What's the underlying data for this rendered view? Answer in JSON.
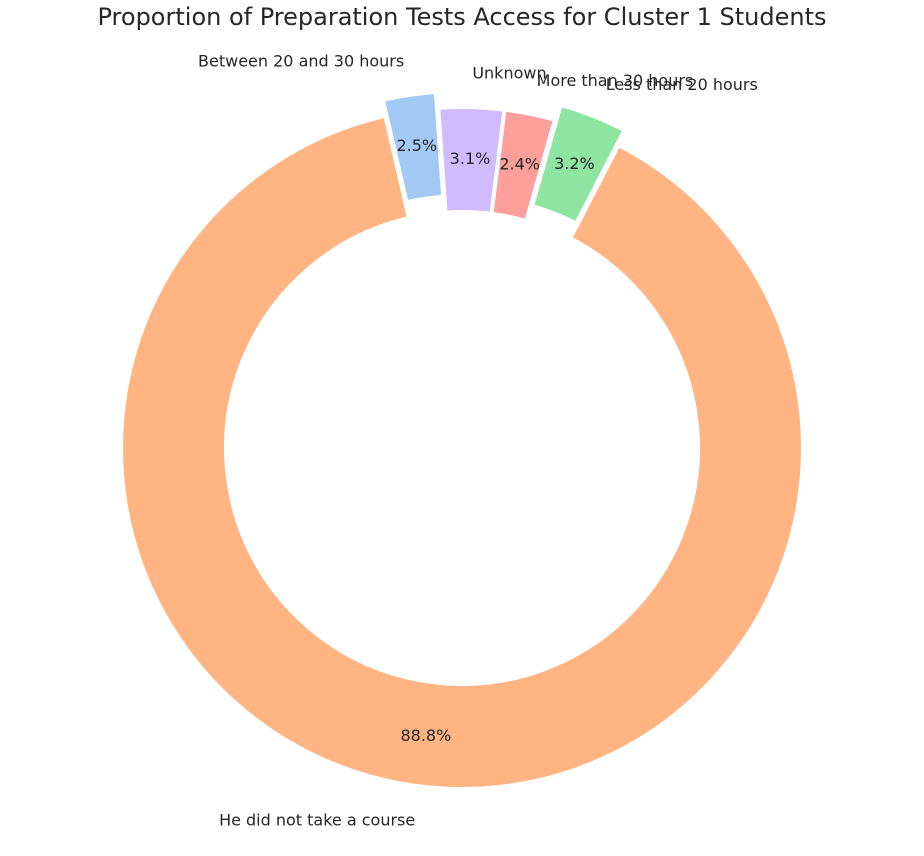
{
  "chart_data": {
    "type": "pie",
    "variant": "donut",
    "title": "Proportion of Preparation Tests Access for Cluster 1 Students",
    "slices": [
      {
        "label": "Between 20 and 30 hours",
        "value": 2.5,
        "display": "2.5%",
        "color": "#a1c9f4",
        "exploded": true
      },
      {
        "label": "He did not take a course",
        "value": 88.8,
        "display": "88.8%",
        "color": "#ffb482",
        "exploded": false
      },
      {
        "label": "Less than 20 hours",
        "value": 3.2,
        "display": "3.2%",
        "color": "#8de5a1",
        "exploded": true
      },
      {
        "label": "More than 30 hours",
        "value": 2.4,
        "display": "2.4%",
        "color": "#ff9f9b",
        "exploded": false
      },
      {
        "label": "Unknown",
        "value": 3.1,
        "display": "3.1%",
        "color": "#d0bbff",
        "exploded": false
      }
    ]
  }
}
